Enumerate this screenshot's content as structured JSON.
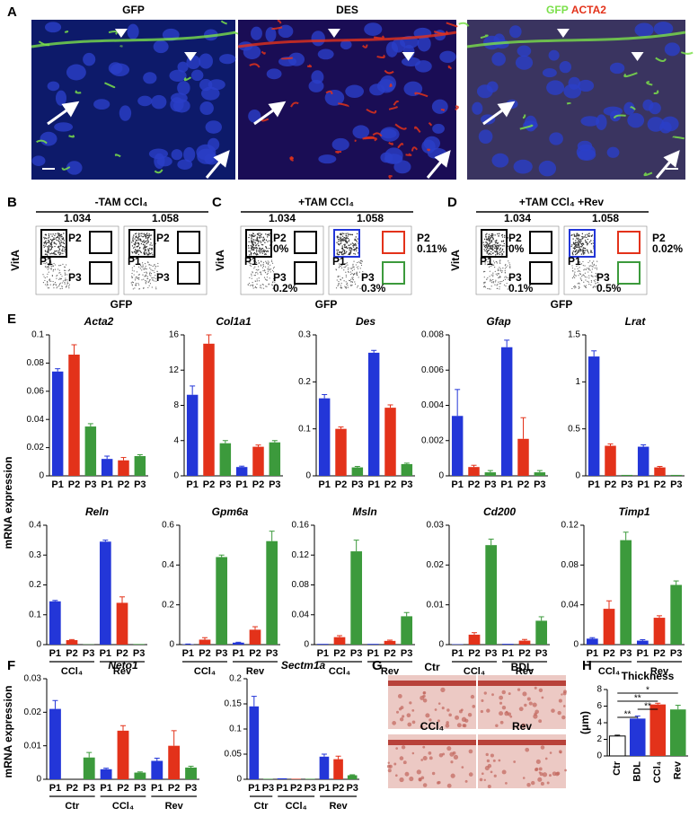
{
  "colors": {
    "P1": "#2336d8",
    "P2": "#e3321a",
    "P3": "#3c9a3c"
  },
  "A": {
    "letter": "A",
    "images": [
      {
        "title": "GFP",
        "color": "#7be04a"
      },
      {
        "title": "DES",
        "color": "#e3321a"
      },
      {
        "title_parts": [
          "GFP",
          "ACTA2"
        ],
        "colors": [
          "#7be04a",
          "#e3321a"
        ]
      }
    ]
  },
  "flow": [
    {
      "letter": "B",
      "title": "-TAM CCl₄",
      "numbers": [
        "1.034",
        "1.058"
      ],
      "y_label": "VitA",
      "x_label": "GFP",
      "plots": [
        [
          {
            "name": "P1",
            "color": "#000"
          },
          {
            "name": "P2",
            "color": "#000"
          },
          {
            "name": "P3",
            "color": "#000"
          }
        ],
        [
          {
            "name": "P1",
            "color": "#000"
          },
          {
            "name": "P2",
            "color": "#000"
          },
          {
            "name": "P3",
            "color": "#000"
          }
        ]
      ]
    },
    {
      "letter": "C",
      "title": "+TAM CCl₄",
      "numbers": [
        "1.034",
        "1.058"
      ],
      "y_label": "VitA",
      "x_label": "GFP",
      "plots": [
        [
          {
            "name": "P1",
            "color": "#000"
          },
          {
            "name": "P2",
            "pct": "0%",
            "color": "#000"
          },
          {
            "name": "P3",
            "pct": "0.2%",
            "color": "#000"
          }
        ],
        [
          {
            "name": "P1",
            "color": "#2336d8"
          },
          {
            "name": "P2",
            "pct": "0.11%",
            "color": "#e3321a"
          },
          {
            "name": "P3",
            "pct": "0.3%",
            "color": "#3c9a3c"
          }
        ]
      ]
    },
    {
      "letter": "D",
      "title": "+TAM CCl₄ +Rev",
      "numbers": [
        "1.034",
        "1.058"
      ],
      "y_label": "VitA",
      "x_label": "GFP",
      "plots": [
        [
          {
            "name": "P1",
            "color": "#000"
          },
          {
            "name": "P2",
            "pct": "0%",
            "color": "#000"
          },
          {
            "name": "P3",
            "pct": "0.1%",
            "color": "#000"
          }
        ],
        [
          {
            "name": "P1",
            "color": "#2336d8"
          },
          {
            "name": "P2",
            "pct": "0.02%",
            "color": "#e3321a"
          },
          {
            "name": "P3",
            "pct": "0.5%",
            "color": "#3c9a3c"
          }
        ]
      ]
    }
  ],
  "E": {
    "letter": "E",
    "y_label": "mRNA expression",
    "charts": [
      {
        "title": "Acta2",
        "ylim": [
          0,
          0.1
        ],
        "yticks": [
          0,
          0.02,
          0.04,
          0.06,
          0.08,
          0.1
        ],
        "categories": [
          "P1",
          "P2",
          "P3",
          "P1",
          "P2",
          "P3"
        ],
        "values": [
          0.074,
          0.086,
          0.035,
          0.012,
          0.011,
          0.014
        ],
        "errors": [
          0.002,
          0.007,
          0.002,
          0.002,
          0.002,
          0.001
        ]
      },
      {
        "title": "Col1a1",
        "ylim": [
          0,
          16
        ],
        "yticks": [
          0,
          4,
          8,
          12,
          16
        ],
        "categories": [
          "P1",
          "P2",
          "P3",
          "P1",
          "P2",
          "P3"
        ],
        "values": [
          9.2,
          15,
          3.7,
          1.0,
          3.3,
          3.8
        ],
        "errors": [
          1.0,
          1.0,
          0.3,
          0.1,
          0.2,
          0.2
        ]
      },
      {
        "title": "Des",
        "ylim": [
          0,
          0.3
        ],
        "yticks": [
          0,
          0.1,
          0.2,
          0.3
        ],
        "categories": [
          "P1",
          "P2",
          "P3",
          "P1",
          "P2",
          "P3"
        ],
        "values": [
          0.165,
          0.1,
          0.018,
          0.262,
          0.145,
          0.025
        ],
        "errors": [
          0.008,
          0.004,
          0.002,
          0.005,
          0.006,
          0.002
        ]
      },
      {
        "title": "Gfap",
        "ylim": [
          0,
          0.008
        ],
        "yticks": [
          0,
          0.002,
          0.004,
          0.006,
          0.008
        ],
        "categories": [
          "P1",
          "P2",
          "P3",
          "P1",
          "P2",
          "P3"
        ],
        "values": [
          0.0034,
          0.0005,
          0.0002,
          0.0073,
          0.0021,
          0.0002
        ],
        "errors": [
          0.0015,
          0.0001,
          0.0001,
          0.0004,
          0.0012,
          0.0001
        ]
      },
      {
        "title": "Lrat",
        "ylim": [
          0,
          1.5
        ],
        "yticks": [
          0,
          0.5,
          1,
          1.5
        ],
        "categories": [
          "P1",
          "P2",
          "P3",
          "P1",
          "P2",
          "P3"
        ],
        "values": [
          1.27,
          0.32,
          0.01,
          0.31,
          0.09,
          0.01
        ],
        "errors": [
          0.06,
          0.02,
          0,
          0.02,
          0.01,
          0
        ]
      },
      {
        "title": "Reln",
        "ylim": [
          0,
          0.4
        ],
        "yticks": [
          0,
          0.1,
          0.2,
          0.3,
          0.4
        ],
        "categories": [
          "P1",
          "P2",
          "P3",
          "P1",
          "P2",
          "P3"
        ],
        "values": [
          0.145,
          0.015,
          0.001,
          0.345,
          0.14,
          0.002
        ],
        "errors": [
          0.003,
          0.002,
          0,
          0.005,
          0.02,
          0
        ],
        "groups": [
          {
            "label": "CCl₄",
            "span": 3
          },
          {
            "label": "Rev",
            "span": 3
          }
        ]
      },
      {
        "title": "Gpm6a",
        "ylim": [
          0,
          0.6
        ],
        "yticks": [
          0,
          0.2,
          0.4,
          0.6
        ],
        "categories": [
          "P1",
          "P2",
          "P3",
          "P1",
          "P2",
          "P3"
        ],
        "values": [
          0.002,
          0.025,
          0.44,
          0.01,
          0.075,
          0.52
        ],
        "errors": [
          0.001,
          0.01,
          0.01,
          0.002,
          0.015,
          0.05
        ],
        "groups": [
          {
            "label": "CCl₄",
            "span": 3
          },
          {
            "label": "Rev",
            "span": 3
          }
        ]
      },
      {
        "title": "Msln",
        "ylim": [
          0,
          0.16
        ],
        "yticks": [
          0,
          0.04,
          0.08,
          0.12,
          0.16
        ],
        "categories": [
          "P1",
          "P2",
          "P3",
          "P1",
          "P2",
          "P3"
        ],
        "values": [
          0.001,
          0.01,
          0.125,
          0.001,
          0.005,
          0.038
        ],
        "errors": [
          0,
          0.002,
          0.015,
          0,
          0.001,
          0.005
        ],
        "groups": [
          {
            "label": "CCl₄",
            "span": 3
          },
          {
            "label": "Rev",
            "span": 3
          }
        ]
      },
      {
        "title": "Cd200",
        "ylim": [
          0,
          0.03
        ],
        "yticks": [
          0,
          0.01,
          0.02,
          0.03
        ],
        "categories": [
          "P1",
          "P2",
          "P3",
          "P1",
          "P2",
          "P3"
        ],
        "values": [
          0.0001,
          0.0025,
          0.025,
          0.0002,
          0.001,
          0.006
        ],
        "errors": [
          0,
          0.0005,
          0.0015,
          0,
          0.0003,
          0.001
        ],
        "groups": [
          {
            "label": "CCl₄",
            "span": 3
          },
          {
            "label": "Rev",
            "span": 3
          }
        ]
      },
      {
        "title": "Timp1",
        "ylim": [
          0,
          0.12
        ],
        "yticks": [
          0,
          0.04,
          0.08,
          0.12
        ],
        "categories": [
          "P1",
          "P2",
          "P3",
          "P1",
          "P2",
          "P3"
        ],
        "values": [
          0.006,
          0.036,
          0.105,
          0.004,
          0.027,
          0.06
        ],
        "errors": [
          0.001,
          0.008,
          0.008,
          0.001,
          0.002,
          0.004
        ],
        "groups": [
          {
            "label": "CCl₄",
            "span": 3
          },
          {
            "label": "Rev",
            "span": 3
          }
        ]
      }
    ]
  },
  "F": {
    "letter": "F",
    "y_label": "mRNA expression",
    "charts": [
      {
        "title": "Neto1",
        "ylim": [
          0,
          0.03
        ],
        "yticks": [
          0,
          0.01,
          0.02,
          0.03
        ],
        "categories": [
          "P1",
          "P2",
          "P3",
          "P1",
          "P2",
          "P3",
          "P1",
          "P2",
          "P3"
        ],
        "values": [
          0.021,
          0,
          0.0065,
          0.003,
          0.0145,
          0.002,
          0.0055,
          0.01,
          0.0035
        ],
        "errors": [
          0.0025,
          0,
          0.0015,
          0.0003,
          0.0015,
          0.0002,
          0.0008,
          0.0045,
          0.0004
        ],
        "groups": [
          {
            "label": "Ctr",
            "span": 3
          },
          {
            "label": "CCl₄",
            "span": 3
          },
          {
            "label": "Rev",
            "span": 3
          }
        ]
      },
      {
        "title": "Sectm1a",
        "ylim": [
          0,
          0.2
        ],
        "yticks": [
          0,
          0.05,
          0.1,
          0.15,
          0.2
        ],
        "categories": [
          "P1",
          "P3",
          "P1",
          "P2",
          "P3",
          "P1",
          "P2",
          "P3"
        ],
        "values": [
          0.145,
          0.001,
          0.002,
          0.001,
          0.001,
          0.045,
          0.04,
          0.008
        ],
        "errors": [
          0.02,
          0,
          0,
          0,
          0,
          0.005,
          0.006,
          0.001
        ],
        "groups": [
          {
            "label": "Ctr",
            "span": 2
          },
          {
            "label": "CCl₄",
            "span": 3
          },
          {
            "label": "Rev",
            "span": 3
          }
        ]
      }
    ]
  },
  "G": {
    "letter": "G",
    "labels": [
      "Ctr",
      "BDL",
      "CCl₄",
      "Rev"
    ]
  },
  "H": {
    "letter": "H",
    "chart": {
      "title": "Thickness",
      "y_label": "(μm)",
      "ylim": [
        0,
        8
      ],
      "yticks": [
        0,
        2,
        4,
        6,
        8
      ],
      "categories": [
        "Ctr",
        "BDL",
        "CCl₄",
        "Rev"
      ],
      "values": [
        2.4,
        4.5,
        6.2,
        5.6
      ],
      "errors": [
        0.1,
        0.3,
        0.15,
        0.5
      ],
      "colors": [
        "#ffffff",
        "#2336d8",
        "#e3321a",
        "#3c9a3c"
      ],
      "significance": [
        {
          "from": 0,
          "to": 3,
          "label": "*"
        },
        {
          "from": 0,
          "to": 2,
          "label": "**"
        },
        {
          "from": 1,
          "to": 2,
          "label": "**"
        },
        {
          "from": 0,
          "to": 1,
          "label": "**"
        }
      ]
    }
  }
}
